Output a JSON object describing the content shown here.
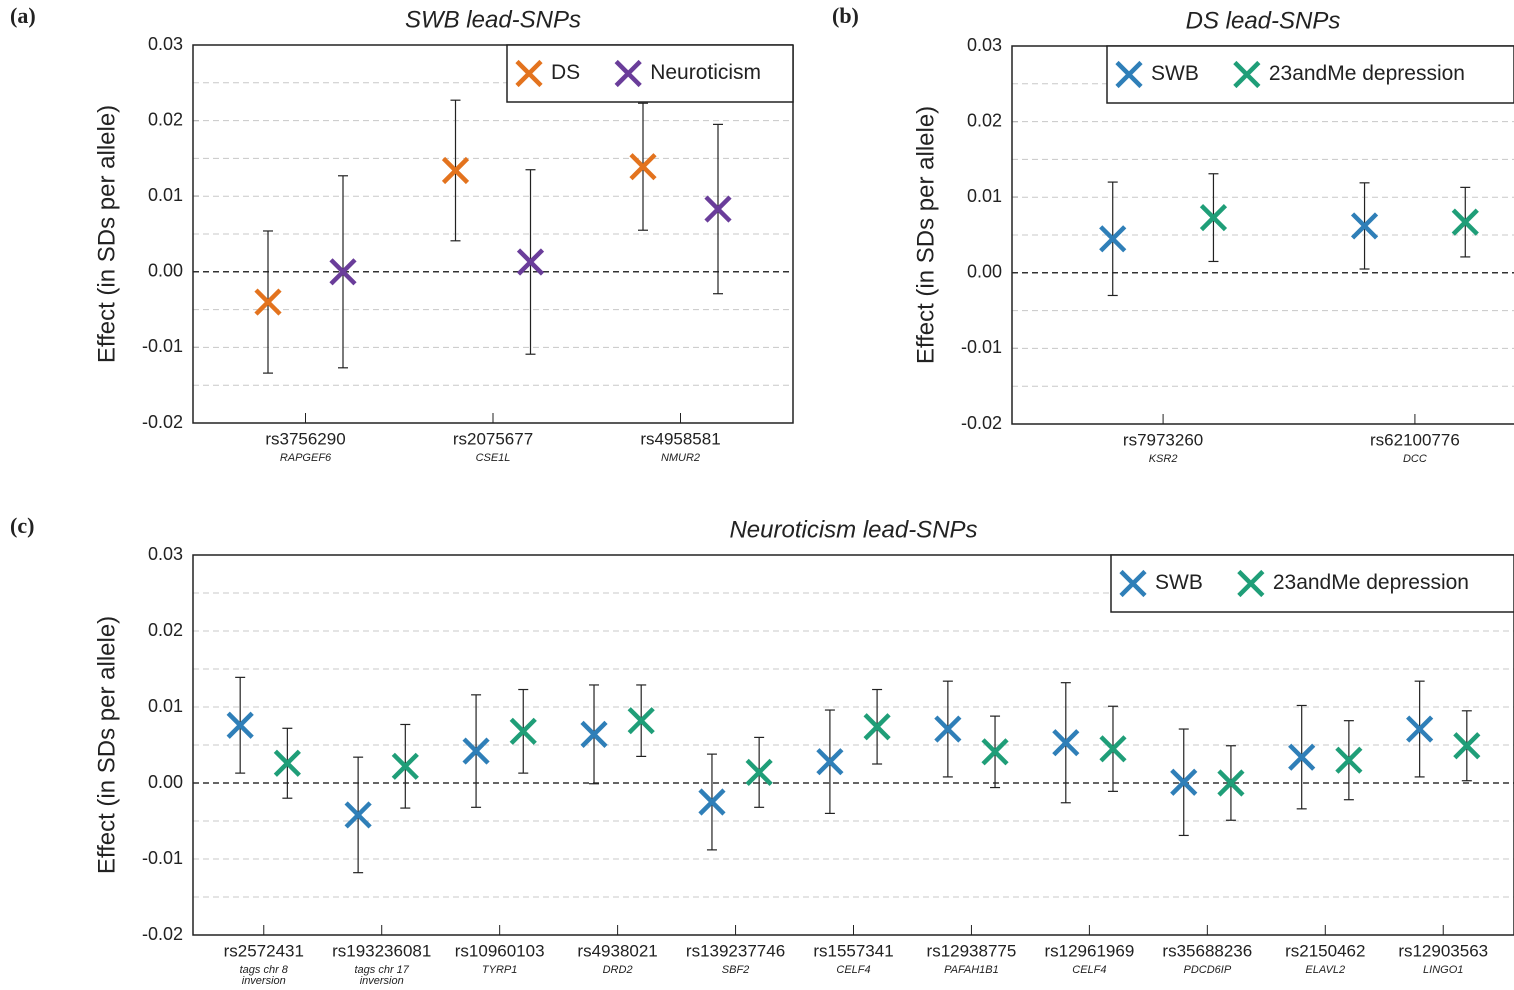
{
  "chart_data": [
    {
      "type": "errorbar",
      "panel_label": "(a)",
      "title": "SWB lead-SNPs",
      "ylabel": "Effect (in SDs per allele)",
      "categories": [
        "rs3756290",
        "rs2075677",
        "rs4958581"
      ],
      "genes": [
        "RAPGEF6",
        "CSE1L",
        "NMUR2"
      ],
      "series": [
        {
          "name": "DS",
          "color": "#e3731e",
          "values": [
            -0.004,
            0.0134,
            0.0139
          ],
          "errors": [
            0.0094,
            0.0093,
            0.0084
          ]
        },
        {
          "name": "Neuroticism",
          "color": "#6a3d9a",
          "values": [
            0.0,
            0.0013,
            0.0083
          ],
          "errors": [
            0.0127,
            0.0122,
            0.0112
          ]
        }
      ],
      "ylim": [
        -0.02,
        0.03
      ],
      "yticks": [
        -0.02,
        -0.01,
        {
          "value": 0,
          "label": "0.00"
        },
        0.01,
        0.02,
        0.03
      ],
      "minor_gridlines": [
        -0.015,
        -0.005,
        0.005,
        0.015,
        0.025
      ],
      "grid": true,
      "legend": "upper right"
    },
    {
      "type": "errorbar",
      "panel_label": "(b)",
      "title": "DS lead-SNPs",
      "ylabel": "Effect (in SDs per allele)",
      "categories": [
        "rs7973260",
        "rs62100776"
      ],
      "genes": [
        "KSR2",
        "DCC"
      ],
      "series": [
        {
          "name": "SWB",
          "color": "#2f7fb8",
          "values": [
            0.0045,
            0.0062
          ],
          "errors": [
            0.0075,
            0.0057
          ]
        },
        {
          "name": "23andMe depression",
          "color": "#1f9e78",
          "values": [
            0.0073,
            0.0067
          ],
          "errors": [
            0.0058,
            0.0046
          ]
        }
      ],
      "ylim": [
        -0.02,
        0.03
      ],
      "yticks": [
        -0.02,
        -0.01,
        {
          "value": 0,
          "label": "0.00"
        },
        0.01,
        0.02,
        0.03
      ],
      "minor_gridlines": [
        -0.015,
        -0.005,
        0.005,
        0.015,
        0.025
      ],
      "grid": true,
      "legend": "upper right"
    },
    {
      "type": "errorbar",
      "panel_label": "(c)",
      "title": "Neuroticism lead-SNPs",
      "ylabel": "Effect (in SDs per allele)",
      "categories": [
        "rs2572431",
        "rs193236081",
        "rs10960103",
        "rs4938021",
        "rs139237746",
        "rs1557341",
        "rs12938775",
        "rs12961969",
        "rs35688236",
        "rs2150462",
        "rs12903563"
      ],
      "genes": [
        "tags chr 8 inversion",
        "tags chr 17 inversion",
        "TYRP1",
        "DRD2",
        "SBF2",
        "CELF4",
        "PAFAH1B1",
        "CELF4",
        "PDCD6IP",
        "ELAVL2",
        "LINGO1"
      ],
      "series": [
        {
          "name": "SWB",
          "color": "#2f7fb8",
          "values": [
            0.0076,
            -0.0042,
            0.0042,
            0.0064,
            -0.0025,
            0.0028,
            0.0071,
            0.0053,
            0.0001,
            0.0034,
            0.0071
          ],
          "errors": [
            0.0063,
            0.0076,
            0.0074,
            0.0065,
            0.0063,
            0.0068,
            0.0063,
            0.0079,
            0.007,
            0.0068,
            0.0063
          ]
        },
        {
          "name": "23andMe depression",
          "color": "#1f9e78",
          "values": [
            0.0026,
            0.0022,
            0.0068,
            0.0082,
            0.0014,
            0.0074,
            0.0041,
            0.0045,
            0.0,
            0.003,
            0.0049
          ],
          "errors": [
            0.0046,
            0.0055,
            0.0055,
            0.0047,
            0.0046,
            0.0049,
            0.0047,
            0.0056,
            0.0049,
            0.0052,
            0.0046
          ]
        }
      ],
      "ylim": [
        -0.02,
        0.03
      ],
      "yticks": [
        -0.02,
        -0.01,
        {
          "value": 0,
          "label": "0.00"
        },
        0.01,
        0.02,
        0.03
      ],
      "minor_gridlines": [
        -0.015,
        -0.005,
        0.005,
        0.015,
        0.025
      ],
      "grid": true,
      "legend": "upper right"
    }
  ]
}
